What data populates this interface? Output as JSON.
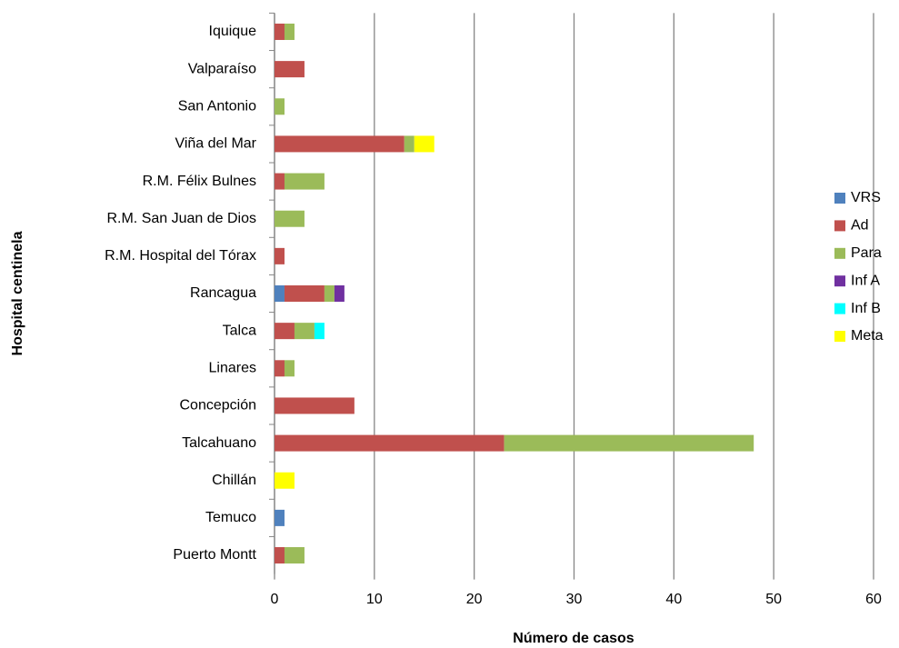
{
  "chart_data": {
    "type": "stacked_barh",
    "xlabel": "Número de casos",
    "ylabel": "Hospital centinela",
    "categories": [
      "Iquique",
      "Valparaíso",
      "San Antonio",
      "Viña del Mar",
      "R.M. Félix Bulnes",
      "R.M. San Juan de Dios",
      "R.M. Hospital del Tórax",
      "Rancagua",
      "Talca",
      "Linares",
      "Concepción",
      "Talcahuano",
      "Chillán",
      "Temuco",
      "Puerto Montt"
    ],
    "series": [
      {
        "name": "VRS",
        "color": "#4f81bd",
        "values": [
          0,
          0,
          0,
          0,
          0,
          0,
          0,
          1,
          0,
          0,
          0,
          0,
          0,
          1,
          0
        ]
      },
      {
        "name": "Ad",
        "color": "#c0504d",
        "values": [
          1,
          3,
          0,
          13,
          1,
          0,
          1,
          4,
          2,
          1,
          8,
          23,
          0,
          0,
          1
        ]
      },
      {
        "name": "Para",
        "color": "#9bbb59",
        "values": [
          1,
          0,
          1,
          1,
          4,
          3,
          0,
          1,
          2,
          1,
          0,
          25,
          0,
          0,
          2
        ]
      },
      {
        "name": "Inf A",
        "color": "#7030a0",
        "values": [
          0,
          0,
          0,
          0,
          0,
          0,
          0,
          1,
          0,
          0,
          0,
          0,
          0,
          0,
          0
        ]
      },
      {
        "name": "Inf B",
        "color": "#00ffff",
        "values": [
          0,
          0,
          0,
          0,
          0,
          0,
          0,
          0,
          1,
          0,
          0,
          0,
          0,
          0,
          0
        ]
      },
      {
        "name": "Meta",
        "color": "#ffff00",
        "values": [
          0,
          0,
          0,
          2,
          0,
          0,
          0,
          0,
          0,
          0,
          0,
          0,
          2,
          0,
          0
        ]
      }
    ],
    "xlim": [
      0,
      60
    ],
    "xticks": [
      0,
      10,
      20,
      30,
      40,
      50,
      60
    ],
    "grid": true,
    "legend": "right"
  }
}
